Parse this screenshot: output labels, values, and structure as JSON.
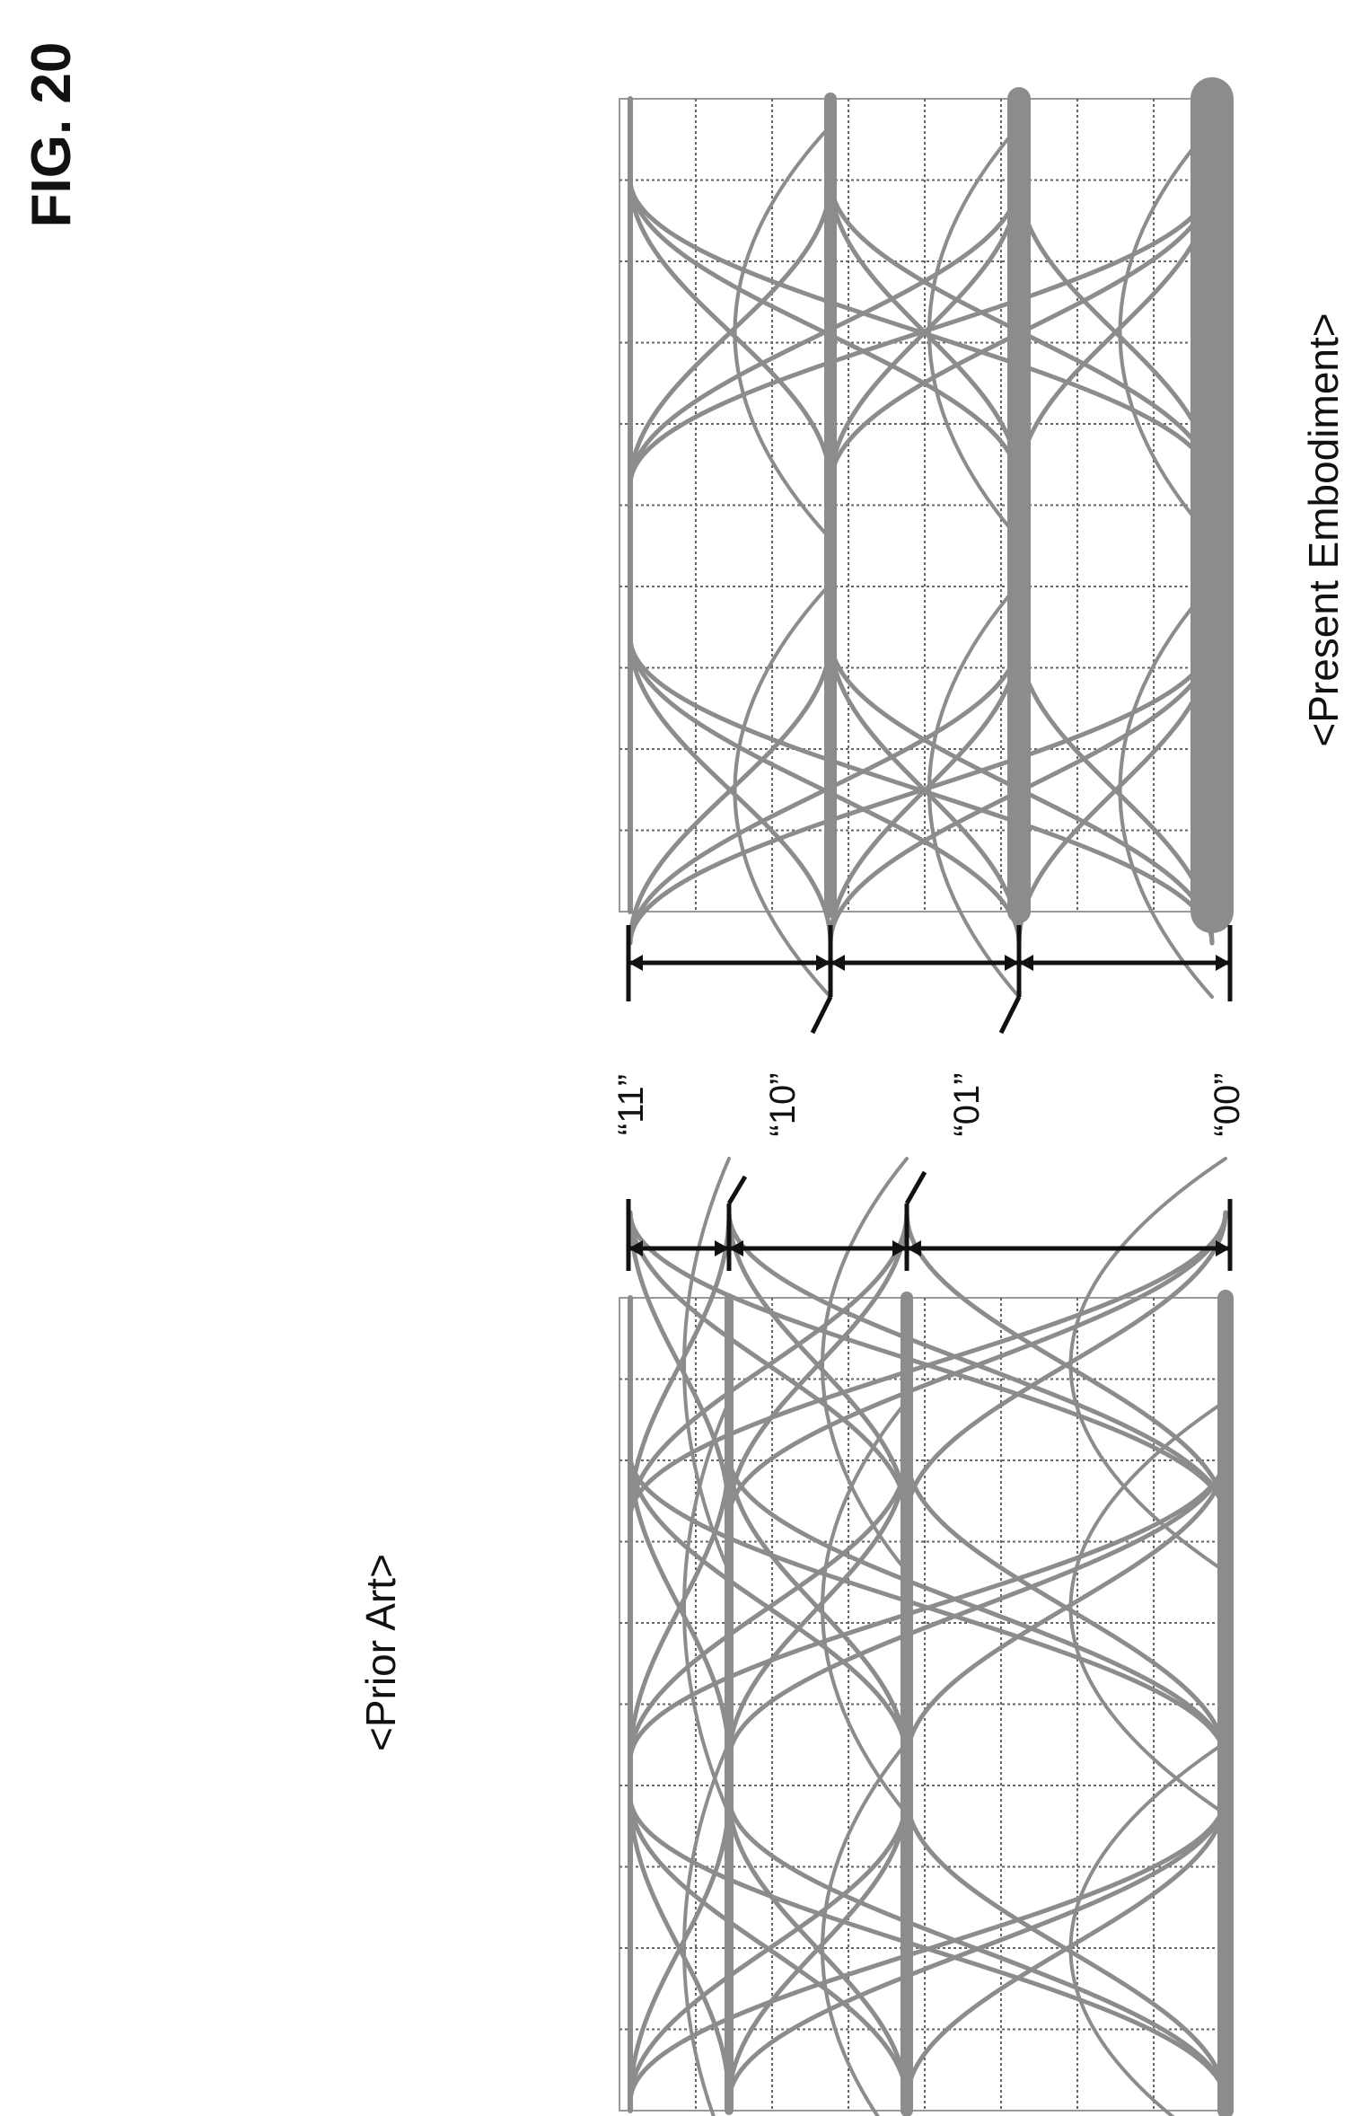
{
  "figure": {
    "title": "FIG. 20"
  },
  "panels": [
    {
      "caption": "<Prior Art>"
    },
    {
      "caption": "<Present Embodiment>"
    }
  ],
  "levels": [
    {
      "label": "“11”"
    },
    {
      "label": "“10”"
    },
    {
      "label": "“01”"
    },
    {
      "label": "“00”"
    }
  ],
  "colors": {
    "trace": "#8c8c8c",
    "grid": "#666666",
    "ink": "#111111"
  }
}
